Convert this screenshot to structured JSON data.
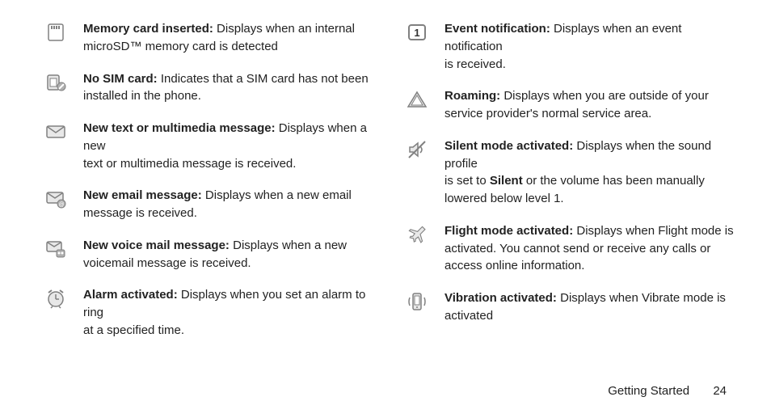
{
  "left": [
    {
      "icon": "memory-card-icon",
      "bold": "Memory card inserted:",
      "text": " Displays when an internal microSD™ memory card is detected",
      "bind_bold": "left.0.bold",
      "bind_text": "left.0.text"
    },
    {
      "icon": "no-sim-icon",
      "bold": "No SIM card:",
      "text": " Indicates that a SIM card has not been installed in the phone.",
      "bind_bold": "left.1.bold",
      "bind_text": "left.1.text"
    },
    {
      "icon": "message-icon",
      "bold": "New text or multimedia message:",
      "text": " Displays when a new",
      "line2": "text or multimedia message is received.",
      "bind_bold": "left.2.bold",
      "bind_text": "left.2.text",
      "bind_line2": "left.2.line2"
    },
    {
      "icon": "email-icon",
      "bold": "New email message:",
      "text": " Displays when a new email message is received.",
      "bind_bold": "left.3.bold",
      "bind_text": "left.3.text"
    },
    {
      "icon": "voicemail-icon",
      "bold": "New voice mail message:",
      "text": " Displays when a new voicemail message is received.",
      "bind_bold": "left.4.bold",
      "bind_text": "left.4.text"
    },
    {
      "icon": "alarm-icon",
      "bold": "Alarm activated:",
      "text": " Displays when you set an alarm to ring",
      "line2": "at a specified time.",
      "bind_bold": "left.5.bold",
      "bind_text": "left.5.text",
      "bind_line2": "left.5.line2"
    }
  ],
  "right": [
    {
      "icon": "event-icon",
      "bold": "Event notification:",
      "text": " Displays when an event notification",
      "line2": "is received.",
      "bind_bold": "right.0.bold",
      "bind_text": "right.0.text",
      "bind_line2": "right.0.line2"
    },
    {
      "icon": "roaming-icon",
      "bold": "Roaming:",
      "text": " Displays when you are outside of your service provider's normal service area.",
      "bind_bold": "right.1.bold",
      "bind_text": "right.1.text"
    },
    {
      "icon": "silent-icon",
      "bold": "Silent mode activated:",
      "text": " Displays when the sound profile",
      "line2_pre": "is set to ",
      "line2_bold": "Silent",
      "line2_post": " or the volume has been manually lowered below level 1.",
      "bind_bold": "right.2.bold",
      "bind_text": "right.2.text",
      "bind_line2_pre": "right.2.line2_pre",
      "bind_line2_bold": "right.2.line2_bold",
      "bind_line2_post": "right.2.line2_post"
    },
    {
      "icon": "flight-icon",
      "bold": "Flight mode activated:",
      "text": " Displays when Flight mode is activated. You cannot send or receive any calls or access online information.",
      "bind_bold": "right.3.bold",
      "bind_text": "right.3.text"
    },
    {
      "icon": "vibration-icon",
      "bold": "Vibration activated:",
      "text": " Displays when Vibrate mode is activated",
      "bind_bold": "right.4.bold",
      "bind_text": "right.4.text"
    }
  ],
  "footer": {
    "section": "Getting Started",
    "page": "24"
  },
  "colors": {
    "icon_stroke": "#808080",
    "icon_fill_light": "#e8e8e8",
    "icon_fill_mid": "#b0b0b0",
    "text": "#222222",
    "background": "#ffffff"
  }
}
